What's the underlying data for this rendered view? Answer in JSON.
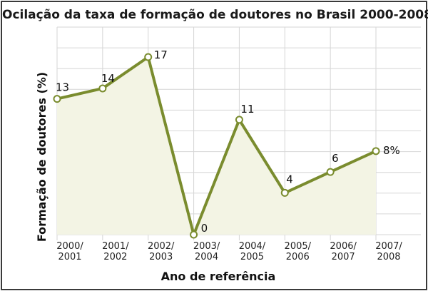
{
  "chart_data": {
    "type": "line",
    "title": "Ocilação da taxa de formação de doutores no Brasil 2000-2008",
    "xlabel": "Ano de referência",
    "ylabel": "Formação de doutores (%)",
    "categories": [
      "2000/2001",
      "2001/2002",
      "2002/2003",
      "2003/2004",
      "2004/2005",
      "2005/2006",
      "2006/2007",
      "2007/2008"
    ],
    "category_lines": [
      [
        "2000/",
        "2001"
      ],
      [
        "2001/",
        "2002"
      ],
      [
        "2002/",
        "2003"
      ],
      [
        "2003/",
        "2004"
      ],
      [
        "2004/",
        "2005"
      ],
      [
        "2005/",
        "2006"
      ],
      [
        "2006/",
        "2007"
      ],
      [
        "2007/",
        "2008"
      ]
    ],
    "values": [
      13,
      14,
      17,
      0,
      11,
      4,
      6,
      8
    ],
    "data_labels": [
      "13",
      "14",
      "17",
      "0",
      "11",
      "4",
      "6",
      "8%"
    ],
    "ylim": [
      0,
      17
    ],
    "grid": true,
    "legend": "none",
    "colors": {
      "line": "#7a8c2e",
      "fill": "#f3f4e4",
      "grid": "#d6d6d6",
      "marker_fill": "#ffffff"
    }
  }
}
